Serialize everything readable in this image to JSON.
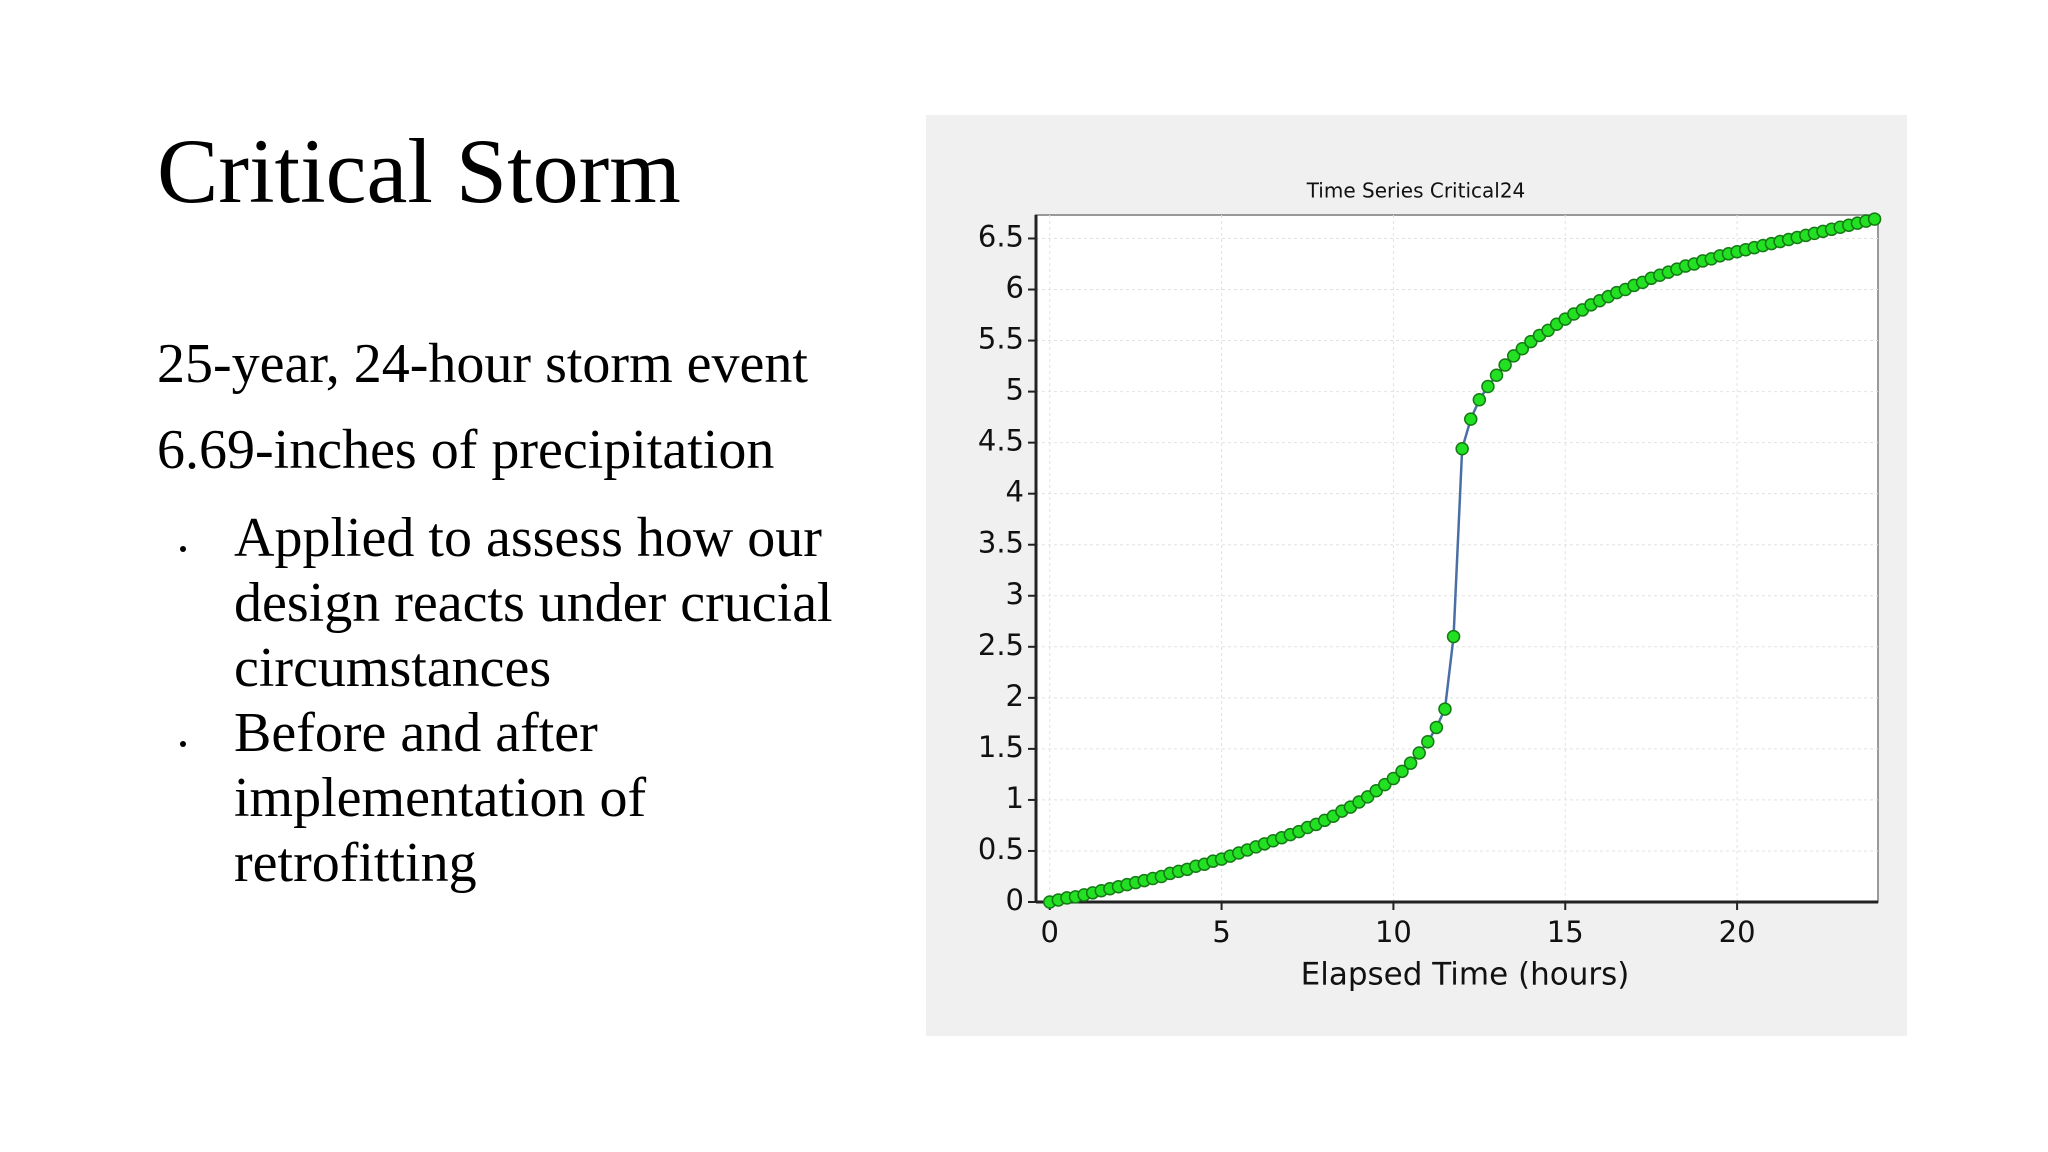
{
  "slide": {
    "title": "Critical Storm",
    "lines": [
      "25-year, 24-hour storm event",
      "6.69-inches of precipitation"
    ],
    "bullets": [
      "Applied to assess how our design reacts under crucial circumstances",
      "Before and after implementation of retrofitting"
    ]
  },
  "chart_data": {
    "type": "line",
    "title": "Time Series Critical24",
    "xlabel": "Elapsed Time (hours)",
    "x": [
      0,
      0.25,
      0.5,
      0.75,
      1,
      1.25,
      1.5,
      1.75,
      2,
      2.25,
      2.5,
      2.75,
      3,
      3.25,
      3.5,
      3.75,
      4,
      4.25,
      4.5,
      4.75,
      5,
      5.25,
      5.5,
      5.75,
      6,
      6.25,
      6.5,
      6.75,
      7,
      7.25,
      7.5,
      7.75,
      8,
      8.25,
      8.5,
      8.75,
      9,
      9.25,
      9.5,
      9.75,
      10,
      10.25,
      10.5,
      10.75,
      11,
      11.25,
      11.5,
      11.75,
      12,
      12.25,
      12.5,
      12.75,
      13,
      13.25,
      13.5,
      13.75,
      14,
      14.25,
      14.5,
      14.75,
      15,
      15.25,
      15.5,
      15.75,
      16,
      16.25,
      16.5,
      16.75,
      17,
      17.25,
      17.5,
      17.75,
      18,
      18.25,
      18.5,
      18.75,
      19,
      19.25,
      19.5,
      19.75,
      20,
      20.25,
      20.5,
      20.75,
      21,
      21.25,
      21.5,
      21.75,
      22,
      22.25,
      22.5,
      22.75,
      23,
      23.25,
      23.5,
      23.75,
      24
    ],
    "series": [
      {
        "color": "#4a6fa5",
        "marker_color": "#22e022",
        "marker_edge": "#157a15",
        "values": [
          0,
          0.02,
          0.04,
          0.05,
          0.07,
          0.09,
          0.11,
          0.13,
          0.15,
          0.17,
          0.19,
          0.21,
          0.23,
          0.25,
          0.28,
          0.3,
          0.32,
          0.35,
          0.37,
          0.4,
          0.42,
          0.45,
          0.48,
          0.51,
          0.54,
          0.57,
          0.6,
          0.63,
          0.66,
          0.69,
          0.73,
          0.76,
          0.8,
          0.84,
          0.89,
          0.93,
          0.98,
          1.03,
          1.09,
          1.15,
          1.21,
          1.28,
          1.36,
          1.46,
          1.57,
          1.71,
          1.89,
          2.6,
          4.44,
          4.73,
          4.92,
          5.05,
          5.16,
          5.26,
          5.35,
          5.42,
          5.49,
          5.55,
          5.6,
          5.66,
          5.71,
          5.76,
          5.8,
          5.85,
          5.89,
          5.93,
          5.97,
          6.0,
          6.04,
          6.07,
          6.11,
          6.14,
          6.17,
          6.2,
          6.23,
          6.25,
          6.28,
          6.3,
          6.33,
          6.35,
          6.37,
          6.39,
          6.41,
          6.43,
          6.45,
          6.47,
          6.49,
          6.51,
          6.53,
          6.55,
          6.57,
          6.59,
          6.61,
          6.63,
          6.65,
          6.67,
          6.69
        ]
      }
    ],
    "xlim": [
      -0.4,
      24.1
    ],
    "ylim": [
      0,
      6.73
    ],
    "xticks": [
      0,
      5,
      10,
      15,
      20
    ],
    "yticks": [
      0,
      0.5,
      1,
      1.5,
      2,
      2.5,
      3,
      3.5,
      4,
      4.5,
      5,
      5.5,
      6,
      6.5
    ],
    "grid": true
  }
}
